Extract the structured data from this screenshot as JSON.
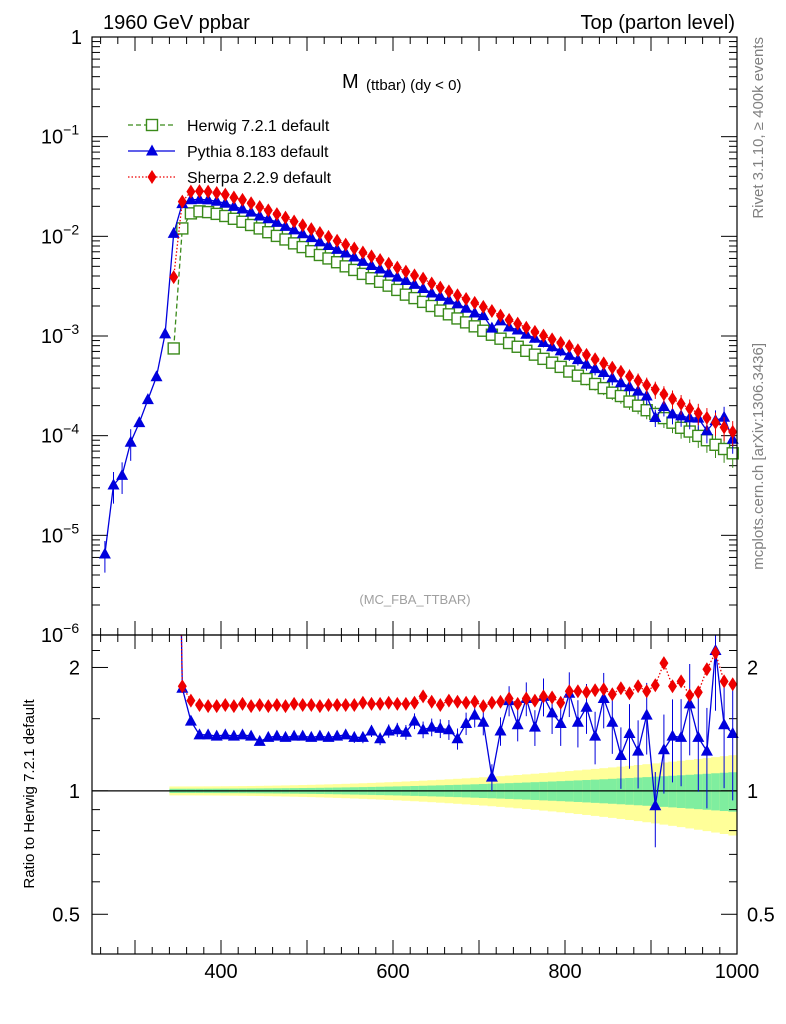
{
  "header": {
    "left": "1960 GeV ppbar",
    "right": "Top (parton level)"
  },
  "plot_title": {
    "main": "M",
    "sub": "(ttbar) (dy < 0)"
  },
  "side_labels": {
    "rivet": "Rivet 3.1.10, ≥ 400k events",
    "mcplots": "mcplots.cern.ch [arXiv:1306.3436]"
  },
  "analysis_tag": "(MC_FBA_TTBAR)",
  "ratio_ylabel": "Ratio to Herwig 7.2.1 default",
  "colors": {
    "herwig": "#3a8a1a",
    "pythia": "#0000dd",
    "sherpa": "#ee0000",
    "band_outer": "#ffff99",
    "band_inner": "#7fee9f"
  },
  "chart_data": [
    {
      "type": "line",
      "scale": "log",
      "title": "M (ttbar) (dy < 0)",
      "xlim": [
        250,
        1000
      ],
      "ylim": [
        1e-06,
        1
      ],
      "y_ticks": [
        {
          "v": 1,
          "base": "1",
          "exp": ""
        },
        {
          "v": 0.1,
          "base": "10",
          "exp": "−1"
        },
        {
          "v": 0.01,
          "base": "10",
          "exp": "−2"
        },
        {
          "v": 0.001,
          "base": "10",
          "exp": "−3"
        },
        {
          "v": 0.0001,
          "base": "10",
          "exp": "−4"
        },
        {
          "v": 1e-05,
          "base": "10",
          "exp": "−5"
        },
        {
          "v": 1e-06,
          "base": "10",
          "exp": "−6"
        }
      ],
      "legend_position": "top-left",
      "series": [
        {
          "name": "Herwig 7.2.1 default",
          "style": "dashed",
          "marker": "open-square",
          "x": [
            345,
            355,
            365,
            375,
            385,
            395,
            405,
            415,
            425,
            435,
            445,
            455,
            465,
            475,
            485,
            495,
            505,
            515,
            525,
            535,
            545,
            555,
            565,
            575,
            585,
            595,
            605,
            615,
            625,
            635,
            645,
            655,
            665,
            675,
            685,
            695,
            705,
            715,
            725,
            735,
            745,
            755,
            765,
            775,
            785,
            795,
            805,
            815,
            825,
            835,
            845,
            855,
            865,
            875,
            885,
            895,
            905,
            915,
            925,
            935,
            945,
            955,
            965,
            975,
            985,
            995
          ],
          "values": [
            0.00075,
            0.012,
            0.017,
            0.0178,
            0.0175,
            0.0168,
            0.016,
            0.015,
            0.014,
            0.013,
            0.012,
            0.011,
            0.0101,
            0.0093,
            0.0085,
            0.0078,
            0.0071,
            0.0065,
            0.006,
            0.0055,
            0.005,
            0.0046,
            0.0042,
            0.0038,
            0.0035,
            0.0032,
            0.0029,
            0.0026,
            0.0024,
            0.0022,
            0.002,
            0.0018,
            0.00165,
            0.0015,
            0.00137,
            0.00125,
            0.00113,
            0.00103,
            0.00094,
            0.00085,
            0.00078,
            0.00071,
            0.00065,
            0.00059,
            0.00054,
            0.00049,
            0.00044,
            0.0004,
            0.00037,
            0.00033,
            0.0003,
            0.00027,
            0.00025,
            0.00022,
            0.0002,
            0.00018,
            0.000165,
            0.00015,
            0.000135,
            0.00012,
            0.00011,
            9.95e-05,
            9e-05,
            8.1e-05,
            7.35e-05,
            6.65e-05
          ]
        },
        {
          "name": "Pythia 8.183 default",
          "style": "solid",
          "marker": "filled-triangle",
          "x": [
            265,
            275,
            285,
            295,
            305,
            315,
            325,
            335,
            345,
            355,
            365,
            375,
            385,
            395,
            405,
            415,
            425,
            435,
            445,
            455,
            465,
            475,
            485,
            495,
            505,
            515,
            525,
            535,
            545,
            555,
            565,
            575,
            585,
            595,
            605,
            615,
            625,
            635,
            645,
            655,
            665,
            675,
            685,
            695,
            705,
            715,
            725,
            735,
            745,
            755,
            765,
            775,
            785,
            795,
            805,
            815,
            825,
            835,
            845,
            855,
            865,
            875,
            885,
            895,
            905,
            915,
            925,
            935,
            945,
            955,
            965,
            975,
            985,
            995
          ],
          "values": [
            6.5e-06,
            3.2e-05,
            4e-05,
            8.6e-05,
            0.000135,
            0.00023,
            0.00039,
            0.00105,
            0.0107,
            0.0213,
            0.0233,
            0.0235,
            0.0232,
            0.0225,
            0.0215,
            0.02,
            0.0188,
            0.0175,
            0.016,
            0.015,
            0.0138,
            0.0126,
            0.0116,
            0.0106,
            0.0097,
            0.0088,
            0.0081,
            0.0074,
            0.0068,
            0.0062,
            0.0056,
            0.0051,
            0.0047,
            0.0043,
            0.0039,
            0.0036,
            0.0033,
            0.003,
            0.0027,
            0.0025,
            0.0023,
            0.0021,
            0.0019,
            0.0017,
            0.0016,
            0.0012,
            0.00142,
            0.00123,
            0.00115,
            0.00104,
            0.00095,
            0.00086,
            0.00078,
            0.00071,
            0.00064,
            0.00058,
            0.00052,
            0.00047,
            0.00043,
            0.00038,
            0.00034,
            0.00031,
            0.00028,
            0.00025,
            0.000152,
            0.000196,
            0.000165,
            0.000158,
            0.000151,
            0.00015,
            0.000112,
            0.000142,
            0.000153,
            9.2e-05
          ]
        },
        {
          "name": "Sherpa 2.2.9 default",
          "style": "dotted",
          "marker": "filled-diamond",
          "x": [
            345,
            355,
            365,
            375,
            385,
            395,
            405,
            415,
            425,
            435,
            445,
            455,
            465,
            475,
            485,
            495,
            505,
            515,
            525,
            535,
            545,
            555,
            565,
            575,
            585,
            595,
            605,
            615,
            625,
            635,
            645,
            655,
            665,
            675,
            685,
            695,
            705,
            715,
            725,
            735,
            745,
            755,
            765,
            775,
            785,
            795,
            805,
            815,
            825,
            835,
            845,
            855,
            865,
            875,
            885,
            895,
            905,
            915,
            925,
            935,
            945,
            955,
            965,
            975,
            985,
            995
          ],
          "values": [
            0.0039,
            0.0223,
            0.0281,
            0.0284,
            0.0281,
            0.0272,
            0.0262,
            0.0245,
            0.0232,
            0.0215,
            0.0197,
            0.0182,
            0.0167,
            0.0154,
            0.0141,
            0.0129,
            0.0118,
            0.0108,
            0.00988,
            0.00903,
            0.00825,
            0.00754,
            0.00689,
            0.0063,
            0.00578,
            0.00531,
            0.00485,
            0.00443,
            0.00406,
            0.00376,
            0.00336,
            0.00306,
            0.0028,
            0.00256,
            0.00235,
            0.00215,
            0.00196,
            0.00178,
            0.0016,
            0.00145,
            0.00133,
            0.00121,
            0.0011,
            0.00101,
            0.000926,
            0.000853,
            0.000791,
            0.00072,
            0.000647,
            0.000584,
            0.000531,
            0.00048,
            0.000436,
            0.000394,
            0.000357,
            0.000322,
            0.000291,
            0.00026,
            0.000234,
            0.000209,
            0.000187,
            0.000168,
            0.000151,
            0.000135,
            0.000121,
            0.000109
          ]
        }
      ]
    },
    {
      "type": "line",
      "scale": "log",
      "ylabel": "Ratio to Herwig 7.2.1 default",
      "xlim": [
        250,
        1000
      ],
      "ylim": [
        0.4,
        2.4
      ],
      "y_ticks": [
        0.5,
        1,
        2
      ],
      "x_ticks": [
        400,
        600,
        800,
        1000
      ],
      "reference_line": 1,
      "series": [
        {
          "name": "Pythia 8.183 default / Herwig",
          "x": [
            355,
            365,
            375,
            385,
            395,
            405,
            415,
            425,
            435,
            445,
            455,
            465,
            475,
            485,
            495,
            505,
            515,
            525,
            535,
            545,
            555,
            565,
            575,
            585,
            595,
            605,
            615,
            625,
            635,
            645,
            655,
            665,
            675,
            685,
            695,
            705,
            715,
            725,
            735,
            745,
            755,
            765,
            775,
            785,
            795,
            805,
            815,
            825,
            835,
            845,
            855,
            865,
            875,
            885,
            895,
            905,
            915,
            925,
            935,
            945,
            955,
            965,
            975,
            985,
            995
          ],
          "values": [
            1.78,
            1.48,
            1.37,
            1.37,
            1.36,
            1.37,
            1.36,
            1.37,
            1.36,
            1.32,
            1.35,
            1.36,
            1.35,
            1.36,
            1.36,
            1.35,
            1.36,
            1.35,
            1.36,
            1.37,
            1.35,
            1.35,
            1.4,
            1.34,
            1.4,
            1.41,
            1.39,
            1.48,
            1.41,
            1.43,
            1.42,
            1.41,
            1.34,
            1.46,
            1.53,
            1.47,
            1.08,
            1.4,
            1.66,
            1.45,
            1.68,
            1.43,
            1.7,
            1.55,
            1.46,
            1.73,
            1.47,
            1.6,
            1.36,
            1.68,
            1.47,
            1.22,
            1.38,
            1.25,
            1.53,
            0.92,
            1.26,
            1.36,
            1.35,
            1.63,
            1.35,
            1.25,
            2.2,
            1.45,
            1.38
          ]
        },
        {
          "name": "Sherpa 2.2.9 default / Herwig",
          "x": [
            355,
            365,
            375,
            385,
            395,
            405,
            415,
            425,
            435,
            445,
            455,
            465,
            475,
            485,
            495,
            505,
            515,
            525,
            535,
            545,
            555,
            565,
            575,
            585,
            595,
            605,
            615,
            625,
            635,
            645,
            655,
            665,
            675,
            685,
            695,
            705,
            715,
            725,
            735,
            745,
            755,
            765,
            775,
            785,
            795,
            805,
            815,
            825,
            835,
            845,
            855,
            865,
            875,
            885,
            895,
            905,
            915,
            925,
            935,
            945,
            955,
            965,
            975,
            985,
            995
          ],
          "values": [
            1.8,
            1.66,
            1.62,
            1.61,
            1.61,
            1.62,
            1.61,
            1.63,
            1.61,
            1.62,
            1.61,
            1.62,
            1.61,
            1.63,
            1.62,
            1.62,
            1.61,
            1.62,
            1.62,
            1.62,
            1.62,
            1.64,
            1.63,
            1.63,
            1.64,
            1.63,
            1.63,
            1.64,
            1.7,
            1.65,
            1.62,
            1.66,
            1.65,
            1.64,
            1.65,
            1.61,
            1.64,
            1.65,
            1.68,
            1.63,
            1.68,
            1.66,
            1.7,
            1.69,
            1.64,
            1.75,
            1.75,
            1.74,
            1.76,
            1.77,
            1.72,
            1.78,
            1.73,
            1.8,
            1.75,
            1.81,
            2.05,
            1.8,
            1.85,
            1.71,
            1.74,
            1.98,
            2.17,
            1.85,
            1.82
          ]
        }
      ]
    }
  ]
}
